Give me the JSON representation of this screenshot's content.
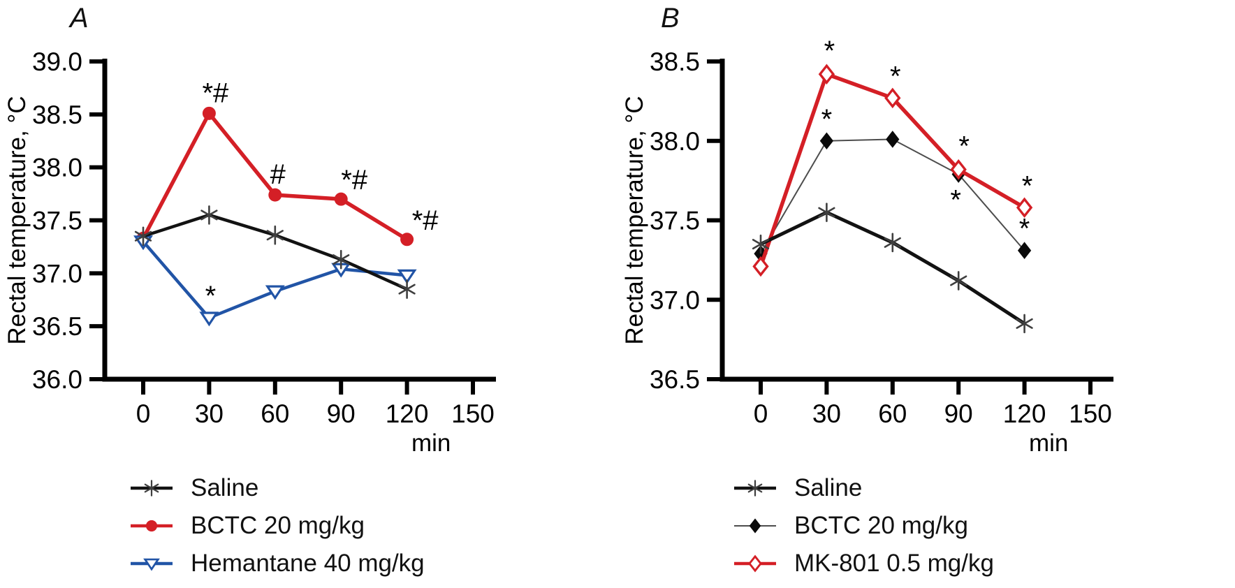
{
  "figure": {
    "background": "#ffffff",
    "panel_letters": [
      "A",
      "B"
    ]
  },
  "chart_data": [
    {
      "type": "line",
      "letter": "A",
      "title": "",
      "ylabel": "Rectal temperature, °C",
      "xlabel_unit": "min",
      "grid": false,
      "legend_position": "below-left",
      "xlim": [
        -14,
        158
      ],
      "ylim": [
        36.0,
        39.0
      ],
      "x_ticks": [
        0,
        30,
        60,
        90,
        120,
        150
      ],
      "x_tick_labels": [
        "0",
        "30",
        "60",
        "90",
        "120",
        "150"
      ],
      "y_ticks": [
        36.0,
        36.5,
        37.0,
        37.5,
        38.0,
        38.5,
        39.0
      ],
      "y_tick_labels": [
        "36.0",
        "36.5",
        "37.0",
        "37.5",
        "38.0",
        "38.5",
        "39.0"
      ],
      "x": [
        0,
        30,
        60,
        90,
        120
      ],
      "series": [
        {
          "name": "Saline",
          "values": [
            37.35,
            37.55,
            37.36,
            37.13,
            36.85
          ],
          "color": "#121212",
          "marker": "asterisk",
          "marker_color": "#3f3f3f",
          "line_width": 4.5,
          "z": 3,
          "annotations": []
        },
        {
          "name": "BCTC 20 mg/kg",
          "values": [
            37.33,
            38.51,
            37.74,
            37.7,
            37.32
          ],
          "color": "#d41f26",
          "marker": "circle",
          "marker_color": "#d41f26",
          "line_width": 5.5,
          "z": 1,
          "annotations": [
            {
              "i": 1,
              "text": "*#",
              "dx": 9,
              "dy": -16
            },
            {
              "i": 2,
              "text": "#",
              "dx": 4,
              "dy": -16
            },
            {
              "i": 3,
              "text": "*#",
              "dx": 19,
              "dy": -14
            },
            {
              "i": 4,
              "text": "*#",
              "dx": 26,
              "dy": -14
            }
          ]
        },
        {
          "name": "Hemantane 40 mg/kg",
          "values": [
            37.3,
            36.58,
            36.83,
            37.04,
            36.98
          ],
          "color": "#2154a6",
          "marker": "triangle-down",
          "marker_color": "#2154a6",
          "line_width": 4.5,
          "z": 2,
          "annotations": [
            {
              "i": 1,
              "text": "*",
              "dx": 2,
              "dy": -18
            }
          ]
        }
      ]
    },
    {
      "type": "line",
      "letter": "B",
      "title": "",
      "ylabel": "Rectal temperature, °C",
      "xlabel_unit": "min",
      "grid": false,
      "legend_position": "below-left",
      "xlim": [
        -14,
        158
      ],
      "ylim": [
        36.5,
        38.5
      ],
      "x_ticks": [
        0,
        30,
        60,
        90,
        120,
        150
      ],
      "x_tick_labels": [
        "0",
        "30",
        "60",
        "90",
        "120",
        "150"
      ],
      "y_ticks": [
        36.5,
        37.0,
        37.5,
        38.0,
        38.5
      ],
      "y_tick_labels": [
        "36.5",
        "37.0",
        "37.5",
        "38.0",
        "38.5"
      ],
      "x": [
        0,
        30,
        60,
        90,
        120
      ],
      "series": [
        {
          "name": "Saline",
          "values": [
            37.35,
            37.55,
            37.36,
            37.12,
            36.85
          ],
          "color": "#121212",
          "marker": "asterisk",
          "marker_color": "#3f3f3f",
          "line_width": 5,
          "z": 3,
          "annotations": []
        },
        {
          "name": "BCTC 20 mg/kg",
          "values": [
            37.29,
            38.0,
            38.01,
            37.79,
            37.31
          ],
          "color": "#4d4d4d",
          "marker": "diamond",
          "marker_color": "#0a0a0a",
          "line_width": 2,
          "z": 1,
          "annotations": [
            {
              "i": 1,
              "text": "*",
              "dx": 0,
              "dy": -18
            },
            {
              "i": 3,
              "text": "*",
              "dx": -4,
              "dy": 50
            },
            {
              "i": 4,
              "text": "*",
              "dx": 0,
              "dy": -18
            }
          ]
        },
        {
          "name": "MK-801 0.5 mg/kg",
          "values": [
            37.21,
            38.42,
            38.27,
            37.82,
            37.58
          ],
          "color": "#d41f26",
          "marker": "open-diamond",
          "marker_color": "#d41f26",
          "line_width": 5.5,
          "z": 2,
          "annotations": [
            {
              "i": 1,
              "text": "*",
              "dx": 4,
              "dy": -20
            },
            {
              "i": 2,
              "text": "*",
              "dx": 4,
              "dy": -18
            },
            {
              "i": 3,
              "text": "*",
              "dx": 8,
              "dy": -20
            },
            {
              "i": 4,
              "text": "*",
              "dx": 4,
              "dy": -18
            }
          ]
        }
      ]
    }
  ]
}
